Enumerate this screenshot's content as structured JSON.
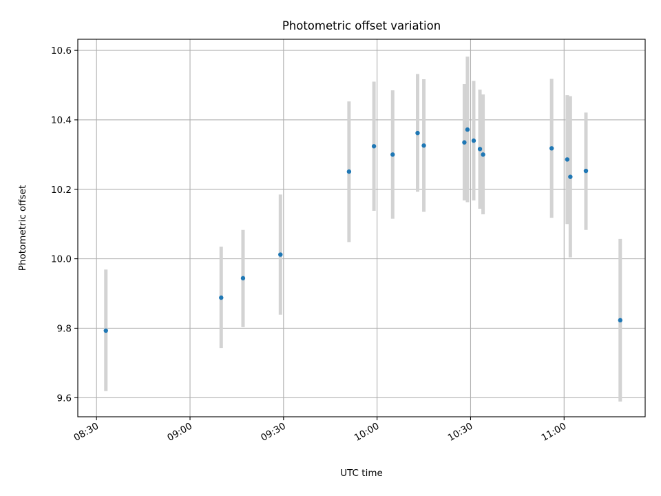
{
  "chart_data": {
    "type": "scatter",
    "title": "Photometric offset variation",
    "xlabel": "UTC time",
    "ylabel": "Photometric offset",
    "grid": true,
    "x_tick_labels": [
      "08:30",
      "09:00",
      "09:30",
      "10:00",
      "10:30",
      "11:00"
    ],
    "y_tick_labels": [
      "9.6",
      "9.8",
      "10.0",
      "10.2",
      "10.4",
      "10.6"
    ],
    "ylim": [
      9.545,
      10.632
    ],
    "xlim": [
      "08:24",
      "11:26"
    ],
    "point_color": "#1f77b4",
    "errorbar_color": "#d3d3d3",
    "points": [
      {
        "time": "08:33",
        "y": 9.793,
        "y_low": 9.619,
        "y_high": 9.969
      },
      {
        "time": "09:10",
        "y": 9.888,
        "y_low": 9.743,
        "y_high": 10.035
      },
      {
        "time": "09:17",
        "y": 9.944,
        "y_low": 9.803,
        "y_high": 10.083
      },
      {
        "time": "09:29",
        "y": 10.012,
        "y_low": 9.839,
        "y_high": 10.185
      },
      {
        "time": "09:51",
        "y": 10.251,
        "y_low": 10.048,
        "y_high": 10.453
      },
      {
        "time": "09:59",
        "y": 10.324,
        "y_low": 10.138,
        "y_high": 10.51
      },
      {
        "time": "10:05",
        "y": 10.3,
        "y_low": 10.115,
        "y_high": 10.485
      },
      {
        "time": "10:13",
        "y": 10.362,
        "y_low": 10.193,
        "y_high": 10.532
      },
      {
        "time": "10:15",
        "y": 10.326,
        "y_low": 10.135,
        "y_high": 10.517
      },
      {
        "time": "10:28",
        "y": 10.335,
        "y_low": 10.168,
        "y_high": 10.503
      },
      {
        "time": "10:29",
        "y": 10.372,
        "y_low": 10.163,
        "y_high": 10.582
      },
      {
        "time": "10:31",
        "y": 10.34,
        "y_low": 10.168,
        "y_high": 10.512
      },
      {
        "time": "10:33",
        "y": 10.316,
        "y_low": 10.144,
        "y_high": 10.487
      },
      {
        "time": "10:34",
        "y": 10.3,
        "y_low": 10.128,
        "y_high": 10.473
      },
      {
        "time": "10:56",
        "y": 10.318,
        "y_low": 10.118,
        "y_high": 10.518
      },
      {
        "time": "11:01",
        "y": 10.286,
        "y_low": 10.1,
        "y_high": 10.471
      },
      {
        "time": "11:02",
        "y": 10.236,
        "y_low": 10.004,
        "y_high": 10.468
      },
      {
        "time": "11:07",
        "y": 10.253,
        "y_low": 10.083,
        "y_high": 10.421
      },
      {
        "time": "11:18",
        "y": 9.823,
        "y_low": 9.589,
        "y_high": 10.057
      }
    ]
  }
}
